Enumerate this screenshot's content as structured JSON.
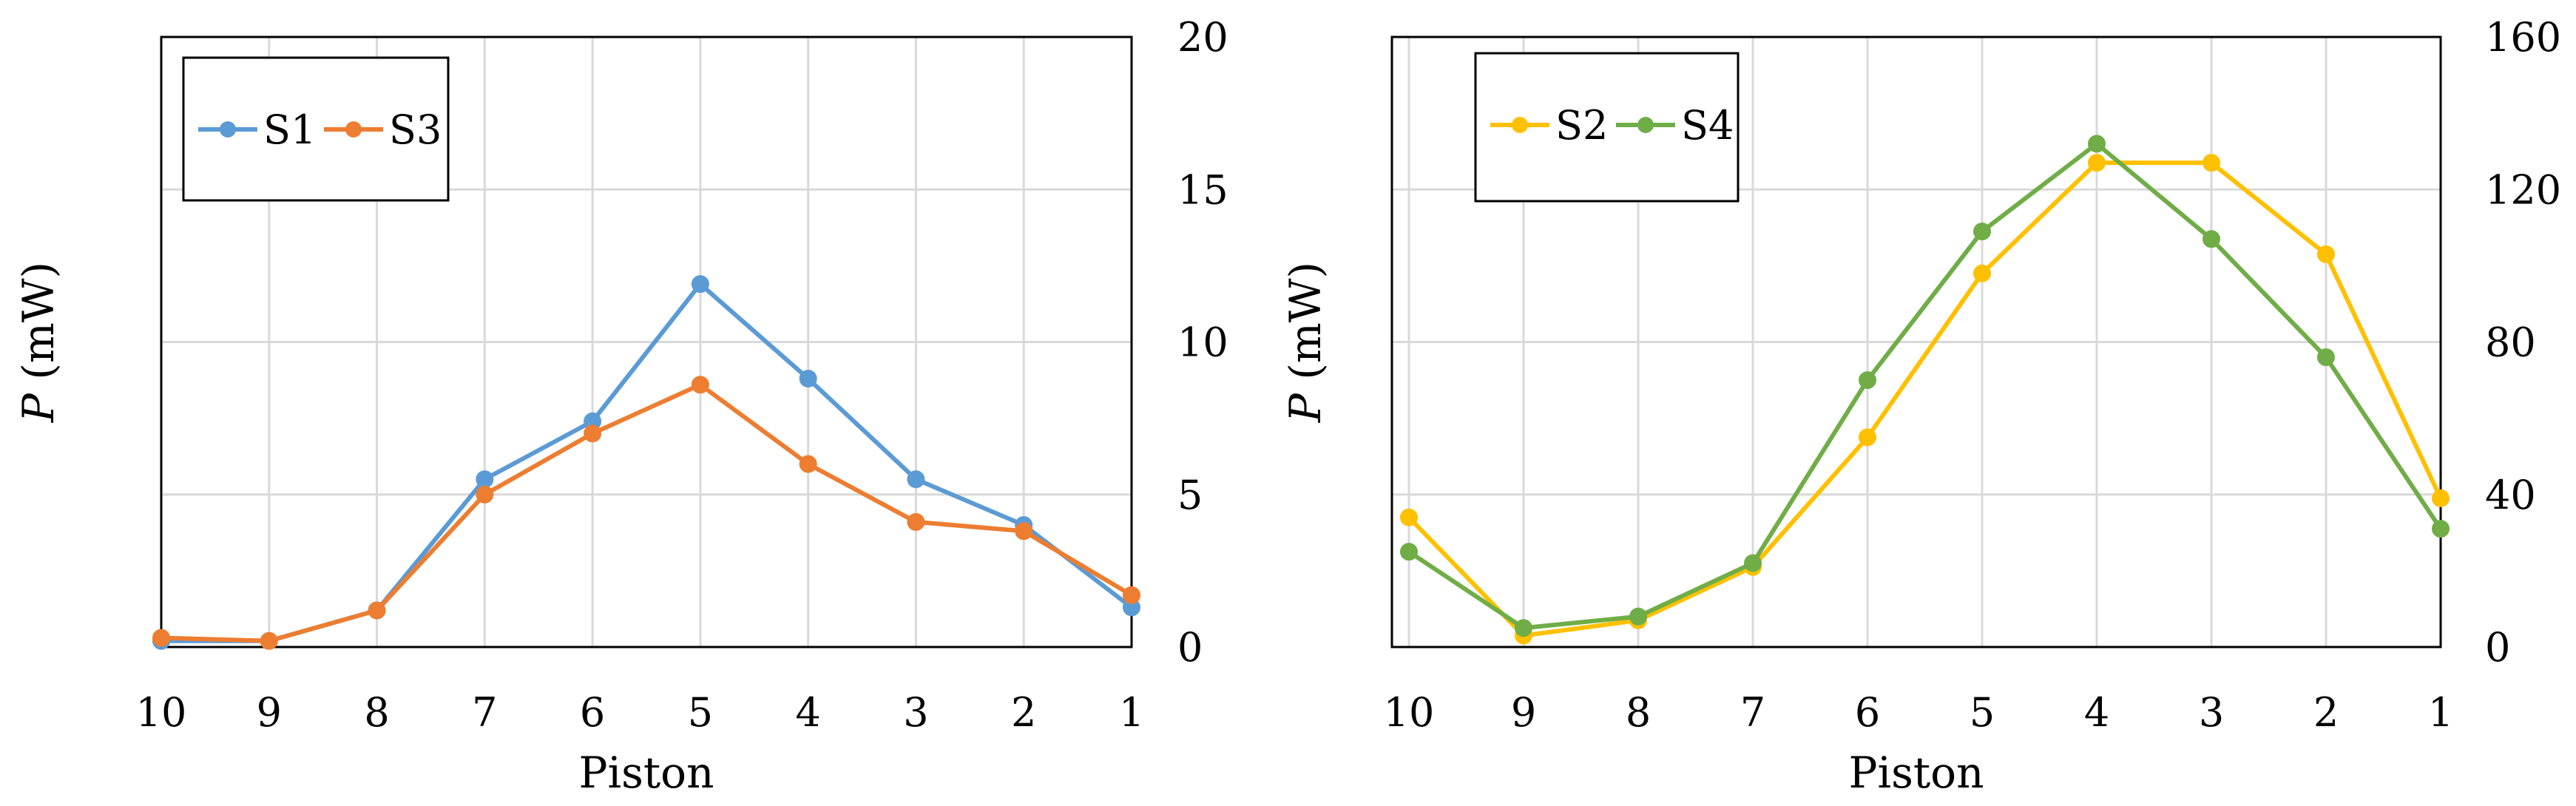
{
  "chart_data": [
    {
      "type": "line",
      "categories": [
        "10",
        "9",
        "8",
        "7",
        "6",
        "5",
        "4",
        "3",
        "2",
        "1"
      ],
      "xlabel": "Piston",
      "ylabel_italic": "P",
      "ylabel_rest": " (mW)",
      "y_axis_side": "right",
      "ylim": [
        0,
        20
      ],
      "yticks": [
        0,
        5,
        10,
        15,
        20
      ],
      "grid": true,
      "legend_position": "top-left",
      "series": [
        {
          "name": "S1",
          "color": "#5B9BD5",
          "values": [
            0.2,
            0.2,
            1.2,
            5.5,
            7.4,
            11.9,
            8.8,
            5.5,
            4.0,
            1.3
          ]
        },
        {
          "name": "S3",
          "color": "#ED7D31",
          "values": [
            0.3,
            0.2,
            1.2,
            5.0,
            7.0,
            8.6,
            6.0,
            4.1,
            3.8,
            1.7
          ]
        }
      ]
    },
    {
      "type": "line",
      "categories": [
        "10",
        "9",
        "8",
        "7",
        "6",
        "5",
        "4",
        "3",
        "2",
        "1"
      ],
      "xlabel": "Piston",
      "ylabel_italic": "P",
      "ylabel_rest": " (mW)",
      "y_axis_side": "right",
      "ylim": [
        0,
        160
      ],
      "yticks": [
        0,
        40,
        80,
        120,
        160
      ],
      "grid": true,
      "legend_position": "top-left",
      "series": [
        {
          "name": "S2",
          "color": "#FFC000",
          "values": [
            34,
            3,
            7,
            21,
            55,
            98,
            127,
            127,
            103,
            39
          ]
        },
        {
          "name": "S4",
          "color": "#70AD47",
          "values": [
            25,
            5,
            8,
            22,
            70,
            109,
            132,
            107,
            76,
            31
          ]
        }
      ]
    }
  ]
}
